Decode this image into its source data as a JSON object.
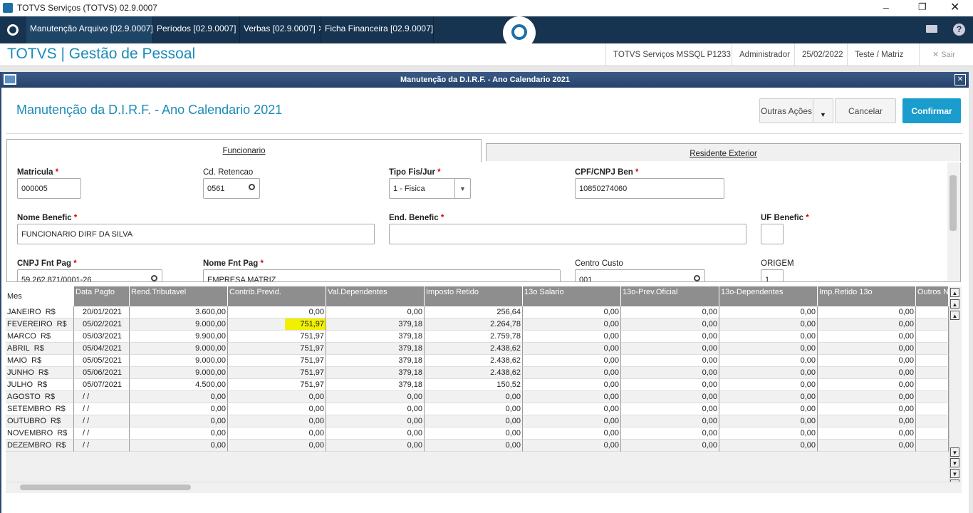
{
  "window": {
    "title": "TOTVS Serviços (TOTVS) 02.9.0007"
  },
  "tabs": [
    "Manutenção Arquivo [02.9.0007]",
    "Períodos [02.9.0007]",
    "Verbas [02.9.0007]",
    "Ficha Financeira [02.9.0007]"
  ],
  "header": {
    "title": "TOTVS | Gestão de Pessoal",
    "info": [
      "TOTVS Serviços MSSQL P1233",
      "Administrador",
      "25/02/2022",
      "Teste / Matriz"
    ],
    "exit": "Sair"
  },
  "dialog": {
    "title": "Manutenção da D.I.R.F. - Ano Calendario 2021",
    "heading": "Manutenção da D.I.R.F. - Ano Calendario 2021",
    "buttons": [
      "Outras Ações",
      "Cancelar",
      "Confirmar"
    ]
  },
  "folders": [
    "Funcionario",
    "Residente Exterior"
  ],
  "fields": [
    {
      "label": "Matricula",
      "mark": "*",
      "value": "000005"
    },
    {
      "label": "Cd. Retencao",
      "value": "0561"
    },
    {
      "label": "Tipo Fis/Jur",
      "mark": "*",
      "value": "1 - Fisica"
    },
    {
      "label": "CPF/CNPJ Ben",
      "mark": "*",
      "value": "10850274060"
    },
    {
      "label": "Nome Benefic",
      "mark": "*",
      "value": "FUNCIONARIO DIRF DA SILVA"
    },
    {
      "label": "End. Benefic",
      "mark": "*"
    },
    {
      "label": "UF Benefic",
      "mark": "*"
    },
    {
      "label": "CNPJ Fnt Pag",
      "mark": "*",
      "value": "59.262.871/0001-26"
    },
    {
      "label": "Nome Fnt Pag",
      "mark": "*",
      "value": "EMPRESA MATRIZ"
    },
    {
      "label": "Centro Custo",
      "value": "001"
    },
    {
      "label": "ORIGEM",
      "value": "1"
    }
  ],
  "table": {
    "columns": [
      "Mes",
      "Data Pagto",
      "Rend.Tributavel",
      "Contrib.Previd.",
      "Val.Dependentes",
      "Imposto Retido",
      "13o  Salario",
      "13o-Prev.Oficial",
      "13o-Dependentes",
      "Imp.Retido 13o",
      "Outros N"
    ],
    "highlight": {
      "row": 1,
      "column": 3
    },
    "rows": [
      [
        "JANEIRO",
        "R$",
        "20/01/2021",
        "3.600,00",
        "0,00",
        "0,00",
        "256,64",
        "0,00",
        "0,00",
        "0,00",
        "0,00"
      ],
      [
        "FEVEREIRO",
        "R$",
        "05/02/2021",
        "9.000,00",
        "751,97",
        "379,18",
        "2.264,78",
        "0,00",
        "0,00",
        "0,00",
        "0,00"
      ],
      [
        "MARCO",
        "R$",
        "05/03/2021",
        "9.900,00",
        "751,97",
        "379,18",
        "2.759,78",
        "0,00",
        "0,00",
        "0,00",
        "0,00"
      ],
      [
        "ABRIL",
        "R$",
        "05/04/2021",
        "9.000,00",
        "751,97",
        "379,18",
        "2.438,62",
        "0,00",
        "0,00",
        "0,00",
        "0,00"
      ],
      [
        "MAIO",
        "R$",
        "05/05/2021",
        "9.000,00",
        "751,97",
        "379,18",
        "2.438,62",
        "0,00",
        "0,00",
        "0,00",
        "0,00"
      ],
      [
        "JUNHO",
        "R$",
        "05/06/2021",
        "9.000,00",
        "751,97",
        "379,18",
        "2.438,62",
        "0,00",
        "0,00",
        "0,00",
        "0,00"
      ],
      [
        "JULHO",
        "R$",
        "05/07/2021",
        "4.500,00",
        "751,97",
        "379,18",
        "150,52",
        "0,00",
        "0,00",
        "0,00",
        "0,00"
      ],
      [
        "AGOSTO",
        "R$",
        "/ /",
        "0,00",
        "0,00",
        "0,00",
        "0,00",
        "0,00",
        "0,00",
        "0,00",
        "0,00"
      ],
      [
        "SETEMBRO",
        "R$",
        "/ /",
        "0,00",
        "0,00",
        "0,00",
        "0,00",
        "0,00",
        "0,00",
        "0,00",
        "0,00"
      ],
      [
        "OUTUBRO",
        "R$",
        "/ /",
        "0,00",
        "0,00",
        "0,00",
        "0,00",
        "0,00",
        "0,00",
        "0,00",
        "0,00"
      ],
      [
        "NOVEMBRO",
        "R$",
        "/ /",
        "0,00",
        "0,00",
        "0,00",
        "0,00",
        "0,00",
        "0,00",
        "0,00",
        "0,00"
      ],
      [
        "DEZEMBRO",
        "R$",
        "/ /",
        "0,00",
        "0,00",
        "0,00",
        "0,00",
        "0,00",
        "0,00",
        "0,00",
        "0,00"
      ]
    ]
  }
}
